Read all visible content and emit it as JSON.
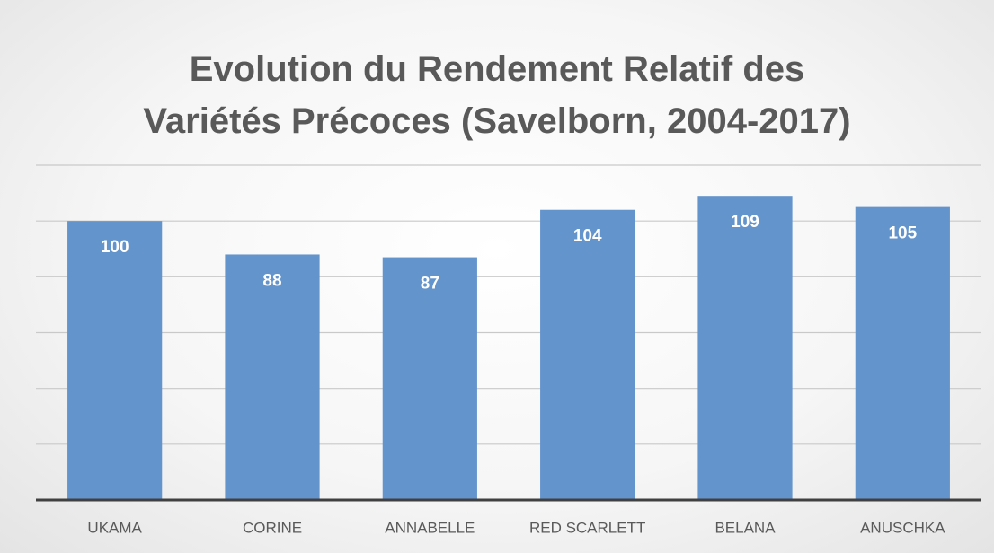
{
  "chart_data": {
    "type": "bar",
    "title": "Evolution du Rendement Relatif des\nVariétés Précoces  (Savelborn, 2004-2017)",
    "categories": [
      "UKAMA",
      "CORINE",
      "ANNABELLE",
      "RED SCARLETT",
      "BELANA",
      "ANUSCHKA"
    ],
    "values": [
      100,
      88,
      87,
      104,
      109,
      105
    ],
    "color": "#6394cc",
    "ylim": [
      0,
      120
    ],
    "yticks": [
      0,
      20,
      40,
      60,
      80,
      100,
      120
    ],
    "grid": true
  }
}
